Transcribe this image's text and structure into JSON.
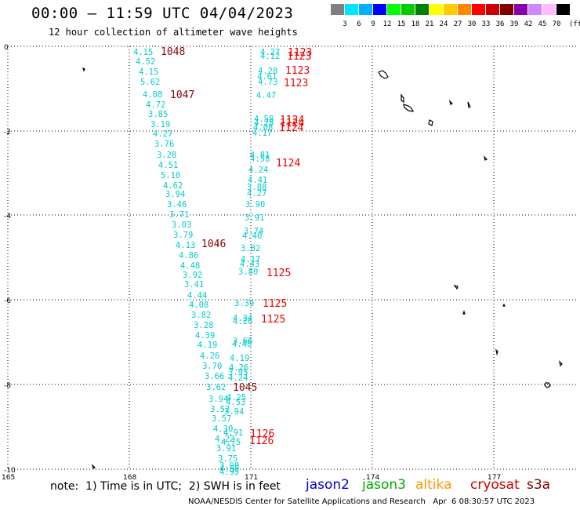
{
  "header": {
    "title": "00:00 – 11:59 UTC 04/04/2023",
    "subtitle": "12 hour collection of altimeter wave heights"
  },
  "legend": {
    "colors": [
      "#808080",
      "#00e5ff",
      "#00b0ff",
      "#0000ff",
      "#00ff00",
      "#00cc00",
      "#008000",
      "#ffff00",
      "#ffcc00",
      "#ff8800",
      "#ff0000",
      "#cc0000",
      "#800000",
      "#8800aa",
      "#cc88ff",
      "#ffbbff",
      "#000000"
    ],
    "labels": [
      "3",
      "6",
      "9",
      "12",
      "15",
      "18",
      "21",
      "24",
      "27",
      "30",
      "33",
      "36",
      "39",
      "42",
      "45",
      "70"
    ],
    "unit": "(ft)"
  },
  "axes": {
    "lat_labels": [
      "0",
      "-2",
      "-4",
      "-6",
      "-8",
      "-10"
    ],
    "lon_labels": [
      "165",
      "168",
      "171",
      "174",
      "177"
    ]
  },
  "wave_heights": {
    "track_left": [
      "4.15",
      "4.52",
      "4.15",
      "5.62",
      "4.08",
      "4.72",
      "3.85",
      "3.19",
      "4.27",
      "3.76",
      "3.28",
      "4.51",
      "5.10",
      "4.62",
      "3.94",
      "3.46",
      "3.71",
      "3.03",
      "3.79",
      "4.13",
      "4.86",
      "4.48",
      "3.92",
      "3.41",
      "4.44",
      "4.08",
      "3.82",
      "3.28",
      "4.39",
      "4.19",
      "4.26",
      "3.70",
      "3.66",
      "3.62",
      "3.94",
      "3.52",
      "3.57",
      "4.30",
      "4.22",
      "3.91",
      "3.75",
      "3.90",
      "4.58",
      "4.95"
    ],
    "track_right": [
      "4.27",
      "4.12",
      "4.28",
      "4.61",
      "4.73",
      "4.47",
      "4.58",
      "4.28",
      "4.08",
      "4.17",
      "4.81",
      "4.58",
      "4.24",
      "4.41",
      "3.88",
      "4.27",
      "3.90",
      "3.91",
      "3.74",
      "4.40",
      "3.82",
      "4.17",
      "4.43",
      "3.80",
      "3.39",
      "4.34",
      "4.26",
      "3.66",
      "4.48",
      "4.19",
      "4.26",
      "3.95",
      "4.24",
      "4.25",
      "4.53",
      "3.94",
      "4.91",
      "4.75"
    ]
  },
  "station_ids": {
    "dark": [
      "1048",
      "1047",
      "1046",
      "1045"
    ],
    "red": [
      "1123",
      "1123",
      "1123",
      "1123",
      "1124",
      "1124",
      "1124",
      "1124",
      "1125",
      "1125",
      "1125",
      "1126",
      "1126"
    ]
  },
  "note": "note:  1) Time is in UTC;  2) SWH is in feet",
  "satellites": [
    {
      "name": "jason2",
      "color": "#0000cc"
    },
    {
      "name": "jason3",
      "color": "#00aa00"
    },
    {
      "name": "altika",
      "color": "#ff9900"
    },
    {
      "name": "cryosat",
      "color": "#cc0000"
    },
    {
      "name": "s3a",
      "color": "#800000"
    }
  ],
  "footer": "NOAA/NESDIS Center for Satellite Applications and Research   Apr  6 08:30:57 UTC 2023",
  "colors": {
    "track": "#00cccc",
    "station_red": "#ee0000",
    "station_dark": "#880000",
    "grid": "#000000"
  }
}
